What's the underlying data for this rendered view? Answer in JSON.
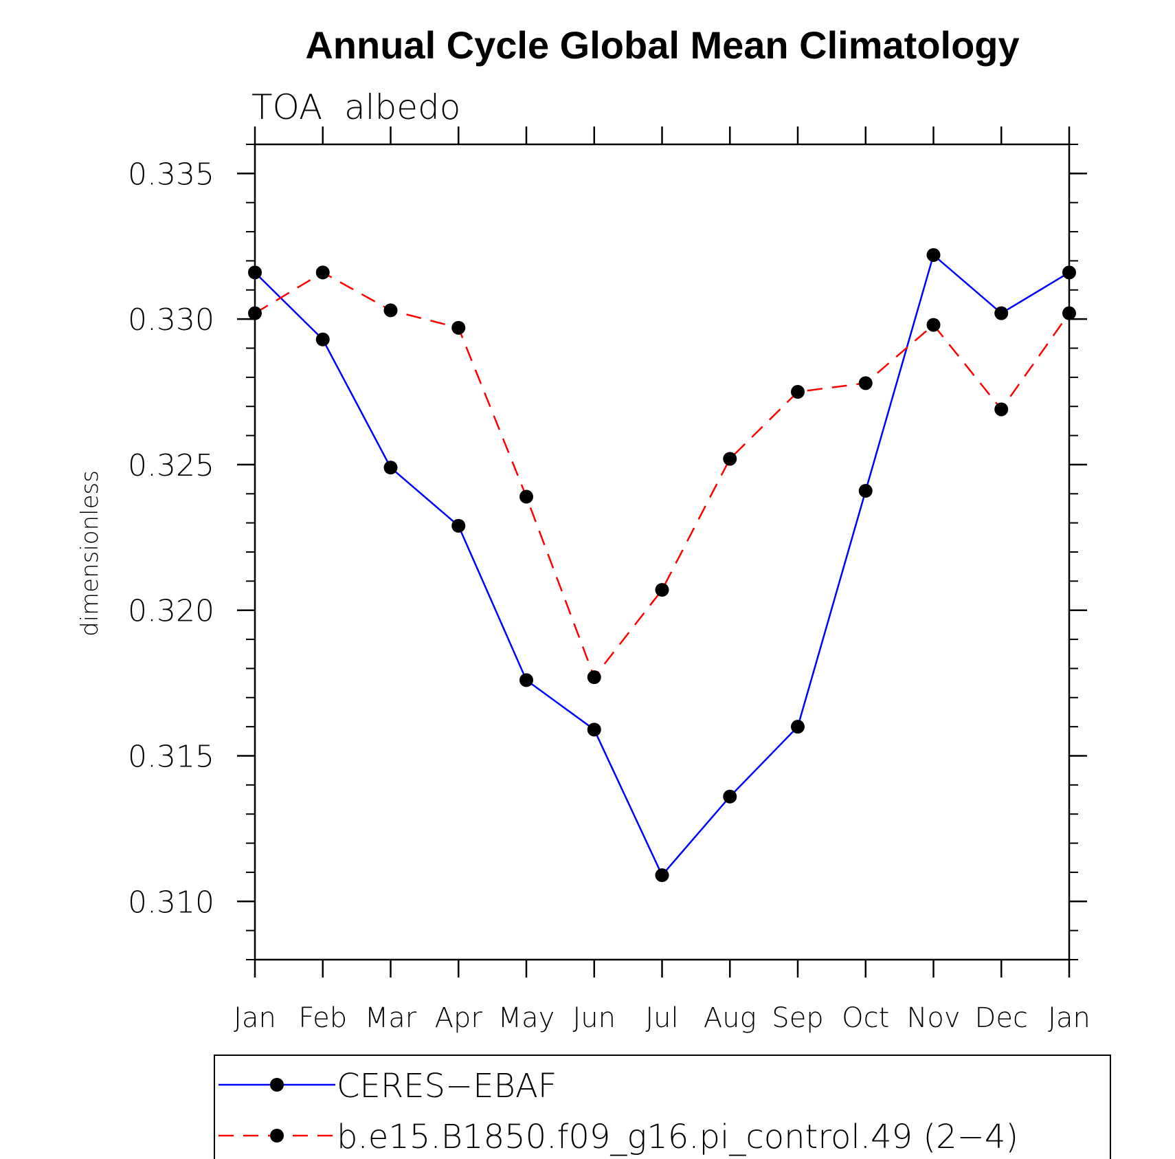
{
  "chart_data": {
    "type": "line",
    "title": "Annual Cycle Global Mean Climatology",
    "subtitle": "TOA  albedo",
    "xlabel": "",
    "ylabel": "dimensionless",
    "categories": [
      "Jan",
      "Feb",
      "Mar",
      "Apr",
      "May",
      "Jun",
      "Jul",
      "Aug",
      "Sep",
      "Oct",
      "Nov",
      "Dec",
      "Jan"
    ],
    "ylim": [
      0.308,
      0.336
    ],
    "yticks": [
      "0.310",
      "0.315",
      "0.320",
      "0.325",
      "0.330",
      "0.335"
    ],
    "ytick_values": [
      0.31,
      0.315,
      0.32,
      0.325,
      0.33,
      0.335
    ],
    "grid": false,
    "legend_position": "bottom",
    "series": [
      {
        "name": "CERES−EBAF",
        "color": "#0000ff",
        "dash": "solid",
        "marker": "filled-circle",
        "values": [
          0.3316,
          0.3293,
          0.3249,
          0.3229,
          0.3176,
          0.3159,
          0.3109,
          0.3136,
          0.316,
          0.3241,
          0.3322,
          0.3302,
          0.3316
        ]
      },
      {
        "name": "b.e15.B1850.f09_g16.pi_control.49 (2−4)",
        "color": "#ff0000",
        "dash": "dashed",
        "marker": "filled-circle",
        "values": [
          0.3302,
          0.3316,
          0.3303,
          0.3297,
          0.3239,
          0.3177,
          0.3207,
          0.3252,
          0.3275,
          0.3278,
          0.3298,
          0.3269,
          0.3302
        ]
      }
    ]
  }
}
